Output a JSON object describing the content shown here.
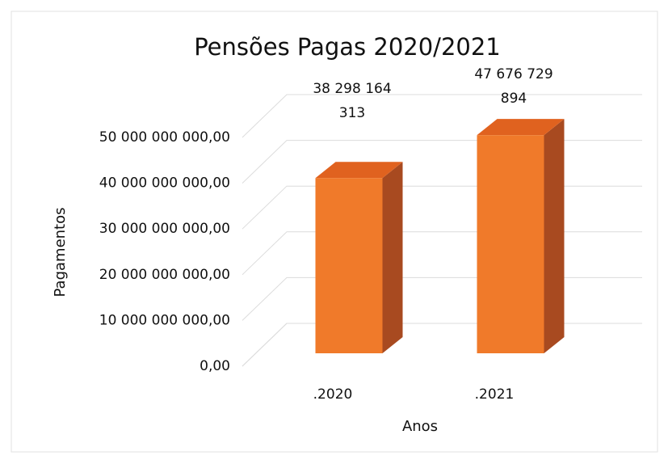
{
  "chart_data": {
    "type": "bar3d",
    "title": "Pensões Pagas 2020/2021",
    "categories": [
      ".2020",
      ".2021"
    ],
    "values": [
      38298164313,
      47676729894
    ],
    "value_labels": [
      "38 298 164 313",
      "47 676 729 894"
    ],
    "color": "#f07a2a",
    "x_label": "Anos",
    "y_label": "Pagamentos",
    "ylim": [
      0,
      50000000000
    ],
    "yticks": [
      {
        "value": 0,
        "label": "0,00"
      },
      {
        "value": 10000000000,
        "label": "10 000 000 000,00"
      },
      {
        "value": 20000000000,
        "label": "20 000 000 000,00"
      },
      {
        "value": 30000000000,
        "label": "30 000 000 000,00"
      },
      {
        "value": 40000000000,
        "label": "40 000 000 000,00"
      },
      {
        "value": 50000000000,
        "label": "50 000 000 000,00"
      }
    ],
    "grid": true
  }
}
